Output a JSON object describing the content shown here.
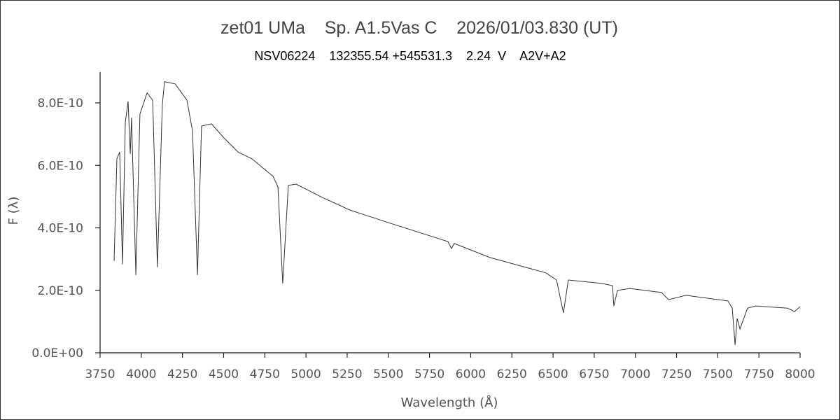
{
  "chart_data": {
    "type": "line",
    "title": "zet01 UMa    Sp. A1.5Vas C    2026/01/03.830 (UT)",
    "subtitle": "NSV06224    132355.54 +545531.3    2.24  V    A2V+A2",
    "xlabel": "Wavelength (Å)",
    "ylabel": "F (λ)",
    "xlim": [
      3750,
      8000
    ],
    "ylim": [
      0,
      9e-10
    ],
    "xticks": [
      3750,
      4000,
      4250,
      4500,
      4750,
      5000,
      5250,
      5500,
      5750,
      6000,
      6250,
      6500,
      6750,
      7000,
      7250,
      7500,
      7750,
      8000
    ],
    "xtick_labels": [
      "3750",
      "4000",
      "4250",
      "4500",
      "4750",
      "5000",
      "5250",
      "5500",
      "5750",
      "6000",
      "6250",
      "6500",
      "6750",
      "7000",
      "7250",
      "7500",
      "7750",
      "8000"
    ],
    "yticks": [
      0,
      2e-10,
      4e-10,
      6e-10,
      8e-10
    ],
    "ytick_labels": [
      "0.0E+00",
      "2.0E-10",
      "4.0E-10",
      "6.0E-10",
      "8.0E-10"
    ],
    "grid": false,
    "line_color": "#333333",
    "series": [
      {
        "x": [
          3835,
          3852,
          3869,
          3886,
          3903,
          3920,
          3933,
          3941,
          3967,
          3992,
          4035,
          4069,
          4098,
          4128,
          4141,
          4205,
          4277,
          4311,
          4341,
          4366,
          4426,
          4502,
          4587,
          4672,
          4800,
          4830,
          4859,
          4893,
          4940,
          5097,
          5267,
          5522,
          5862,
          5883,
          5900,
          6117,
          6457,
          6521,
          6563,
          6593,
          6797,
          6861,
          6869,
          6891,
          6967,
          7159,
          7201,
          7307,
          7562,
          7588,
          7605,
          7618,
          7635,
          7681,
          7732,
          7924,
          7966,
          8000
        ],
        "y": [
          2.94e-10,
          6.21e-10,
          6.43e-10,
          2.83e-10,
          7.38e-10,
          8.05e-10,
          6.37e-10,
          7.53e-10,
          2.49e-10,
          7.64e-10,
          8.32e-10,
          8.09e-10,
          2.74e-10,
          7.94e-10,
          8.68e-10,
          8.61e-10,
          8.09e-10,
          7.11e-10,
          2.49e-10,
          7.26e-10,
          7.33e-10,
          6.88e-10,
          6.43e-10,
          6.21e-10,
          5.65e-10,
          5.31e-10,
          2.22e-10,
          5.36e-10,
          5.4e-10,
          4.98e-10,
          4.57e-10,
          4.13e-10,
          3.56e-10,
          3.34e-10,
          3.5e-10,
          3.05e-10,
          2.56e-10,
          2.33e-10,
          1.28e-10,
          2.33e-10,
          2.22e-10,
          2.15e-10,
          1.5e-10,
          2e-10,
          2.06e-10,
          1.93e-10,
          1.7e-10,
          1.84e-10,
          1.66e-10,
          1.43e-10,
          2.5e-11,
          1.1e-10,
          7.6e-11,
          1.43e-10,
          1.5e-10,
          1.43e-10,
          1.32e-10,
          1.48e-10
        ]
      }
    ]
  }
}
